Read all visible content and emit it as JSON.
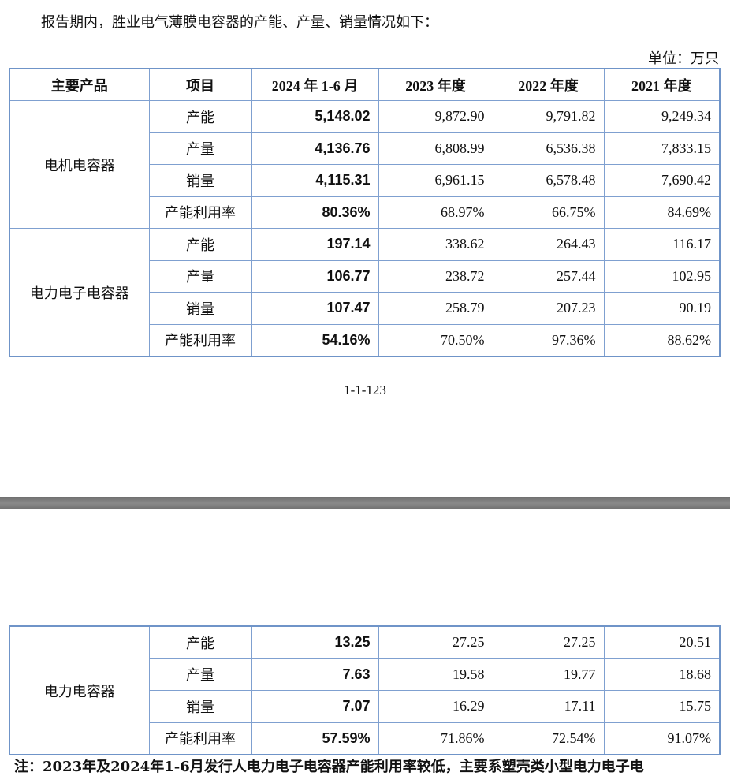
{
  "intro": "报告期内，胜业电气薄膜电容器的产能、产量、销量情况如下：",
  "unit": "单位：万只",
  "headers": [
    "主要产品",
    "项目",
    "2024 年 1-6 月",
    "2023 年度",
    "2022 年度",
    "2021 年度"
  ],
  "groups": [
    {
      "product": "电机电容器",
      "rows": [
        [
          "产能",
          "5,148.02",
          "9,872.90",
          "9,791.82",
          "9,249.34"
        ],
        [
          "产量",
          "4,136.76",
          "6,808.99",
          "6,536.38",
          "7,833.15"
        ],
        [
          "销量",
          "4,115.31",
          "6,961.15",
          "6,578.48",
          "7,690.42"
        ],
        [
          "产能利用率",
          "80.36%",
          "68.97%",
          "66.75%",
          "84.69%"
        ]
      ]
    },
    {
      "product": "电力电子电容器",
      "rows": [
        [
          "产能",
          "197.14",
          "338.62",
          "264.43",
          "116.17"
        ],
        [
          "产量",
          "106.77",
          "238.72",
          "257.44",
          "102.95"
        ],
        [
          "销量",
          "107.47",
          "258.79",
          "207.23",
          "90.19"
        ],
        [
          "产能利用率",
          "54.16%",
          "70.50%",
          "97.36%",
          "88.62%"
        ]
      ]
    },
    {
      "product": "电力电容器",
      "rows": [
        [
          "产能",
          "13.25",
          "27.25",
          "27.25",
          "20.51"
        ],
        [
          "产量",
          "7.63",
          "19.58",
          "19.77",
          "18.68"
        ],
        [
          "销量",
          "7.07",
          "16.29",
          "17.11",
          "15.75"
        ],
        [
          "产能利用率",
          "57.59%",
          "71.86%",
          "72.54%",
          "91.07%"
        ]
      ]
    }
  ],
  "page_number": "1-1-123",
  "note": "注：2023年及2024年1-6月发行人电力电子电容器产能利用率较低，主要系塑壳类小型电力电子电"
}
